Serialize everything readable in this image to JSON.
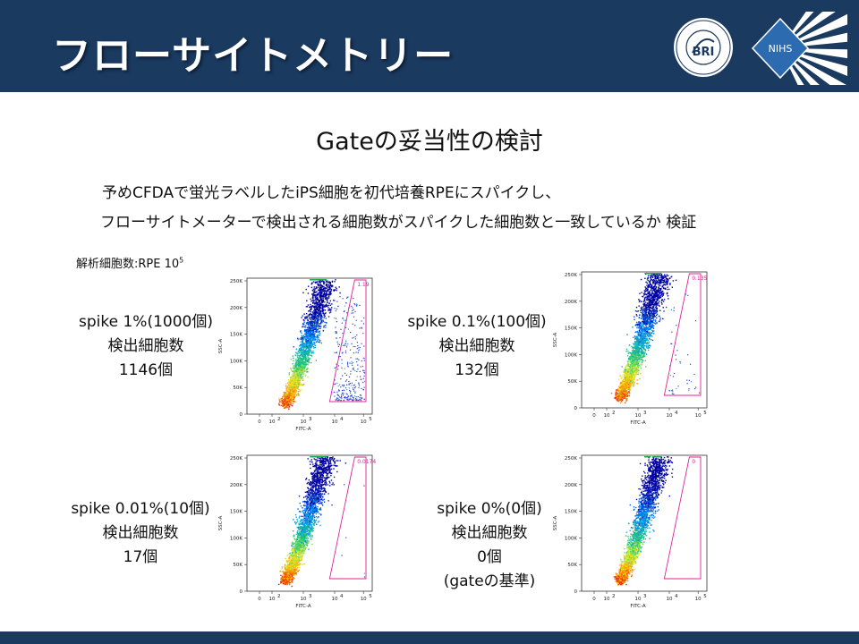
{
  "header": {
    "title": "フローサイトメトリー",
    "logos": {
      "bri": {
        "text": "BRI",
        "arc_text": "Foundation for Biomedical Research and Innovation"
      },
      "nihs": {
        "text": "NIHS"
      }
    }
  },
  "subtitle": "Gateの妥当性の検討",
  "description": {
    "line1": "予めCFDAで蛍光ラベルしたiPS細胞を初代培養RPEにスパイクし、",
    "line2": "フローサイトメーターで検出される細胞数がスパイクした細胞数と一致しているか 検証"
  },
  "analysis_label": {
    "text": "解析細胞数:RPE 10",
    "exp": "5"
  },
  "samples": [
    {
      "line1": "spike 1%(1000個)",
      "line2": "検出細胞数",
      "line3": "1146個",
      "line4": ""
    },
    {
      "line1": "spike 0.1%(100個)",
      "line2": "検出細胞数",
      "line3": "132個",
      "line4": ""
    },
    {
      "line1": "spike 0.01%(10個)",
      "line2": "検出細胞数",
      "line3": "17個",
      "line4": ""
    },
    {
      "line1": "spike 0%(0個)",
      "line2": "検出細胞数",
      "line3": "0個",
      "line4": "(gateの基準)"
    }
  ],
  "plots": [
    {
      "gate_value": "1.19",
      "spike_events": 300
    },
    {
      "gate_value": "0.135",
      "spike_events": 40
    },
    {
      "gate_value": "0.0174",
      "spike_events": 6
    },
    {
      "gate_value": "0",
      "spike_events": 0
    }
  ],
  "plot_axes": {
    "y_ticks": [
      "250K",
      "200K",
      "150K",
      "100K",
      "50K",
      "0"
    ],
    "x_ticks": [
      "0",
      "10",
      "10",
      "10",
      "10"
    ],
    "x_exponents": [
      "",
      "2",
      "3",
      "4",
      "5"
    ],
    "x_label": "FITC-A",
    "y_label": "SSC-A"
  },
  "colors": {
    "header_bg": "#1b3a60",
    "gate": "#e0209a",
    "text": "#111111"
  }
}
